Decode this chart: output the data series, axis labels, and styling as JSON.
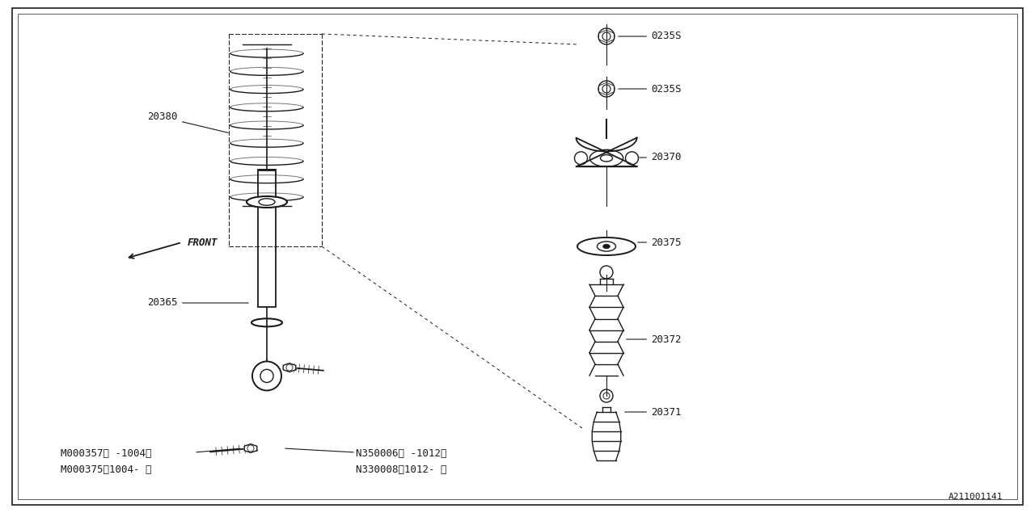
{
  "bg_color": "#ffffff",
  "line_color": "#1a1a1a",
  "fig_width": 12.8,
  "fig_height": 6.4,
  "dpi": 100,
  "diagram_id": "A211001141",
  "labels": {
    "spring": "20380",
    "bracket": "20365",
    "bolt_top": "M000357〈 -1004〉",
    "bolt_bot": "M000375〈1004- 〉",
    "nut_top1": "0235S",
    "nut_top2": "0235S",
    "mount": "20370",
    "seat": "20375",
    "boot": "20372",
    "bumper": "20371",
    "n1": "N350006〈 -1012〉",
    "n2": "N330008〈1012- 〉"
  },
  "front_label": "FRONT"
}
